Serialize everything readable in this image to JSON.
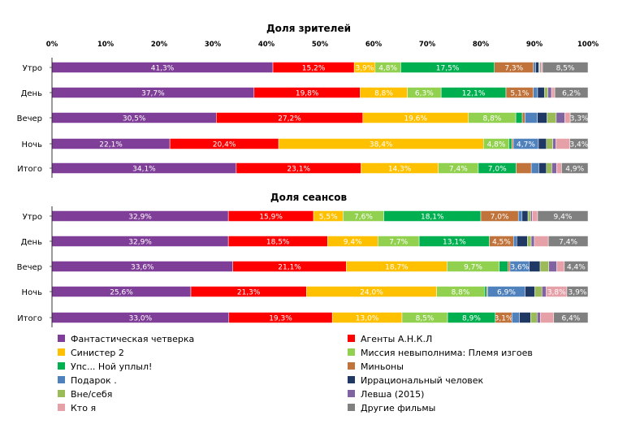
{
  "chart_data": [
    {
      "type": "bar",
      "orientation": "horizontal",
      "stacked": "percent",
      "title": "Доля зрителей",
      "categories": [
        "Утро",
        "День",
        "Вечер",
        "Ночь",
        "Итого"
      ],
      "x_ticks": [
        "0%",
        "10%",
        "20%",
        "30%",
        "40%",
        "50%",
        "60%",
        "70%",
        "80%",
        "90%",
        "100%"
      ],
      "xlim": [
        0,
        100
      ],
      "series": [
        {
          "name": "Фантастическая четверка",
          "values": [
            41.3,
            37.7,
            30.5,
            22.1,
            34.1
          ],
          "labels": [
            "41,3%",
            "37,7%",
            "30,5%",
            "22,1%",
            "34,1%"
          ]
        },
        {
          "name": "Агенты А.Н.К.Л",
          "values": [
            15.2,
            19.8,
            27.2,
            20.4,
            23.1
          ],
          "labels": [
            "15,2%",
            "19,8%",
            "27,2%",
            "20,4%",
            "23,1%"
          ]
        },
        {
          "name": "Синистер 2",
          "values": [
            3.9,
            8.8,
            19.6,
            38.4,
            14.3
          ],
          "labels": [
            "3,9%",
            "8,8%",
            "19,6%",
            "38,4%",
            "14,3%"
          ]
        },
        {
          "name": "Миссия невыполнима: Племя изгоев",
          "values": [
            4.8,
            6.3,
            8.8,
            4.8,
            7.4
          ],
          "labels": [
            "4,8%",
            "6,3%",
            "8,8%",
            "4,8%",
            "7,4%"
          ]
        },
        {
          "name": "Упс... Ной уплыл!",
          "values": [
            17.5,
            12.1,
            1.2,
            0.5,
            7.0
          ],
          "labels": [
            "17,5%",
            "12,1%",
            "",
            "",
            "7,0%"
          ]
        },
        {
          "name": "Миньоны",
          "values": [
            7.3,
            5.1,
            0.5,
            0.3,
            2.8
          ],
          "labels": [
            "7,3%",
            "5,1%",
            "",
            "",
            ""
          ]
        },
        {
          "name": "Подарок .",
          "values": [
            0.4,
            0.8,
            2.3,
            4.7,
            1.4
          ],
          "labels": [
            "",
            "",
            "",
            "4,7%",
            ""
          ]
        },
        {
          "name": "Иррациональный человек",
          "values": [
            0.6,
            1.3,
            1.8,
            1.5,
            1.4
          ],
          "labels": [
            "",
            "",
            "",
            "",
            ""
          ]
        },
        {
          "name": "Вне/себя",
          "values": [
            0.2,
            0.6,
            1.7,
            1.2,
            1.0
          ],
          "labels": [
            "",
            "",
            "",
            "",
            ""
          ]
        },
        {
          "name": "Левша (2015)",
          "values": [
            0.2,
            0.7,
            1.6,
            0.6,
            0.9
          ],
          "labels": [
            "",
            "",
            "",
            "",
            ""
          ]
        },
        {
          "name": "Кто я",
          "values": [
            0.3,
            0.6,
            1.0,
            2.6,
            0.9
          ],
          "labels": [
            "",
            "",
            "",
            "",
            ""
          ]
        },
        {
          "name": "Другие фильмы",
          "values": [
            8.5,
            6.2,
            3.3,
            3.4,
            4.9
          ],
          "labels": [
            "8,5%",
            "6,2%",
            "3,3%",
            "3,4%",
            "4,9%"
          ]
        }
      ]
    },
    {
      "type": "bar",
      "orientation": "horizontal",
      "stacked": "percent",
      "title": "Доля сеансов",
      "categories": [
        "Утро",
        "День",
        "Вечер",
        "Ночь",
        "Итого"
      ],
      "xlim": [
        0,
        100
      ],
      "series": [
        {
          "name": "Фантастическая четверка",
          "values": [
            32.9,
            32.9,
            33.6,
            25.6,
            33.0
          ],
          "labels": [
            "32,9%",
            "32,9%",
            "33,6%",
            "25,6%",
            "33,0%"
          ]
        },
        {
          "name": "Агенты А.Н.К.Л",
          "values": [
            15.9,
            18.5,
            21.1,
            21.3,
            19.3
          ],
          "labels": [
            "15,9%",
            "18,5%",
            "21,1%",
            "21,3%",
            "19,3%"
          ]
        },
        {
          "name": "Синистер 2",
          "values": [
            5.5,
            9.4,
            18.7,
            24.0,
            13.0
          ],
          "labels": [
            "5,5%",
            "9,4%",
            "18,7%",
            "24,0%",
            "13,0%"
          ]
        },
        {
          "name": "Миссия невыполнима: Племя изгоев",
          "values": [
            7.6,
            7.7,
            9.7,
            8.8,
            8.5
          ],
          "labels": [
            "7,6%",
            "7,7%",
            "9,7%",
            "8,8%",
            "8,5%"
          ]
        },
        {
          "name": "Упс... Ной уплыл!",
          "values": [
            18.1,
            13.1,
            1.6,
            0.4,
            8.9
          ],
          "labels": [
            "18,1%",
            "13,1%",
            "",
            "",
            "8,9%"
          ]
        },
        {
          "name": "Миньоны",
          "values": [
            7.0,
            4.5,
            0.4,
            0.2,
            3.1
          ],
          "labels": [
            "7,0%",
            "4,5%",
            "",
            "",
            "3,1%"
          ]
        },
        {
          "name": "Подарок .",
          "values": [
            0.7,
            0.6,
            3.6,
            6.9,
            1.4
          ],
          "labels": [
            "",
            "",
            "3,6%",
            "6,9%",
            ""
          ]
        },
        {
          "name": "Иррациональный человек",
          "values": [
            1.1,
            2.0,
            2.0,
            1.8,
            2.1
          ],
          "labels": [
            "",
            "",
            "",
            "",
            ""
          ]
        },
        {
          "name": "Вне/себя",
          "values": [
            0.5,
            0.7,
            1.6,
            1.3,
            1.2
          ],
          "labels": [
            "",
            "",
            "",
            "",
            ""
          ]
        },
        {
          "name": "Левша (2015)",
          "values": [
            0.3,
            0.6,
            1.5,
            0.8,
            0.6
          ],
          "labels": [
            "",
            "",
            "",
            "",
            ""
          ]
        },
        {
          "name": "Кто я",
          "values": [
            1.0,
            2.6,
            1.4,
            3.8,
            2.5
          ],
          "labels": [
            "",
            "",
            "",
            "3,8%",
            ""
          ]
        },
        {
          "name": "Другие фильмы",
          "values": [
            9.4,
            7.4,
            4.4,
            3.9,
            6.4
          ],
          "labels": [
            "9,4%",
            "7,4%",
            "4,4%",
            "3,9%",
            "6,4%"
          ]
        }
      ]
    }
  ],
  "legend": {
    "position": "bottom",
    "colors": {
      "Фантастическая четверка": "#7f3f98",
      "Агенты А.Н.К.Л": "#ff0000",
      "Синистер 2": "#ffc000",
      "Миссия невыполнима: Племя изгоев": "#92d050",
      "Упс... Ной уплыл!": "#00b050",
      "Миньоны": "#c0733a",
      "Подарок .": "#4f81bd",
      "Иррациональный человек": "#1f3864",
      "Вне/себя": "#9bbb59",
      "Левша (2015)": "#8064a2",
      "Кто я": "#e6a0a8",
      "Другие фильмы": "#808080"
    }
  }
}
